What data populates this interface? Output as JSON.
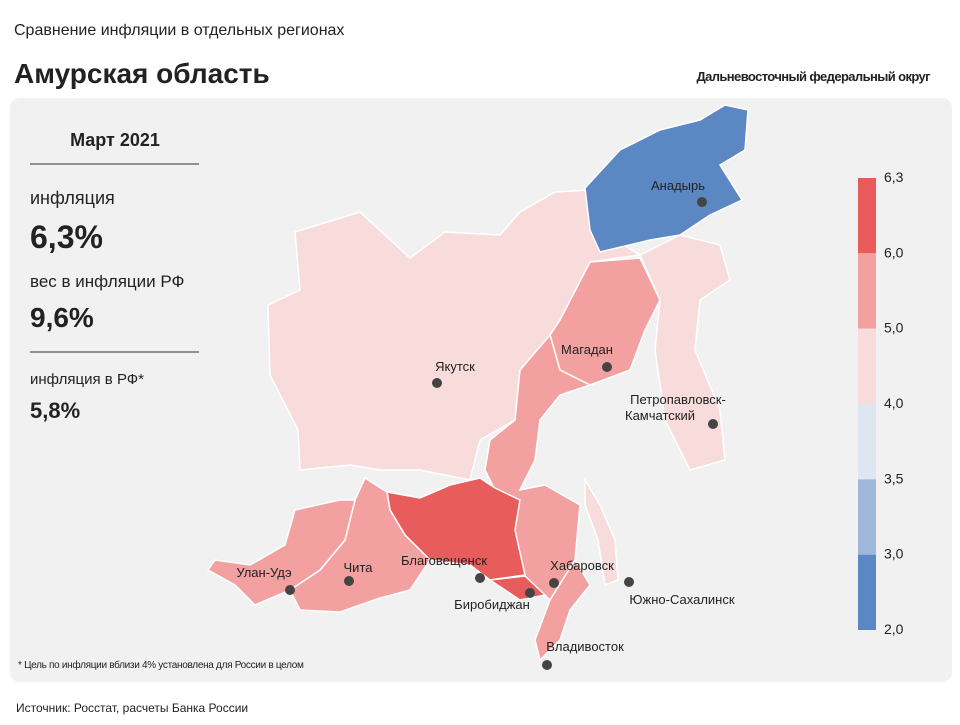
{
  "header": {
    "subtitle": "Сравнение инфляции в отдельных регионах",
    "title": "Амурская область",
    "district": "Дальневосточный федеральный округ"
  },
  "panel": {
    "period": "Март 2021",
    "inflation_label": "инфляция",
    "inflation_value": "6,3%",
    "weight_label": "вес в инфляции РФ",
    "weight_value": "9,6%",
    "rf_label": "инфляция в РФ*",
    "rf_value": "5,8%",
    "footnote": "* Цель по инфляции вблизи 4% установлена для России в целом"
  },
  "legend": {
    "ticks": [
      "6,3",
      "6,0",
      "5,0",
      "4,0",
      "3,5",
      "3,0",
      "2,0"
    ],
    "colors": [
      "#e85c5c",
      "#f2a0a0",
      "#f8dcdc",
      "#dde6f1",
      "#9fb8da",
      "#5b87c2"
    ]
  },
  "cities": [
    {
      "name": "Анадырь"
    },
    {
      "name": "Якутск"
    },
    {
      "name": "Магадан"
    },
    {
      "name": [
        "Петропавловск-",
        "Камчатский"
      ]
    },
    {
      "name": "Улан-Удэ"
    },
    {
      "name": "Чита"
    },
    {
      "name": "Благовещенск"
    },
    {
      "name": "Биробиджан"
    },
    {
      "name": "Хабаровск"
    },
    {
      "name": "Южно-Сахалинск"
    },
    {
      "name": "Владивосток"
    }
  ],
  "source": "Источник: Росстат, расчеты Банка России"
}
